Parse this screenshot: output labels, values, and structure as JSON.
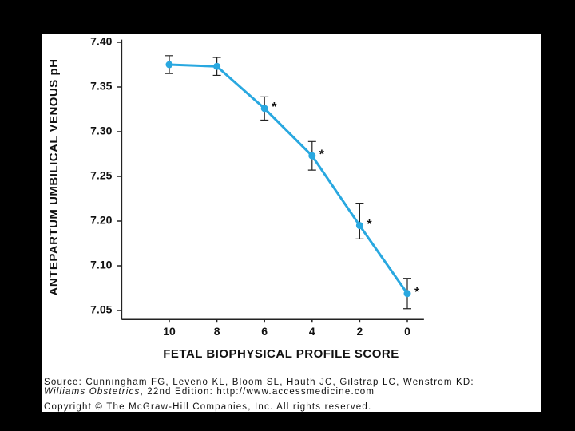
{
  "chart_data": {
    "type": "line",
    "x_label": "FETAL BIOPHYSICAL PROFILE SCORE",
    "y_label": "ANTEPARTUM UMBILICAL VENOUS pH",
    "x": [
      10,
      8,
      6,
      4,
      2,
      0
    ],
    "series": [
      {
        "color": "#29a8e0",
        "values": [
          7.375,
          7.373,
          7.326,
          7.273,
          7.19,
          7.069
        ],
        "errors": [
          0.01,
          0.01,
          0.013,
          0.016,
          0.03,
          0.017
        ]
      }
    ],
    "point_labels": [
      null,
      null,
      "*",
      "*",
      "*",
      "*"
    ],
    "xlim": [
      12,
      -0.7
    ],
    "xticks": [
      10,
      8,
      6,
      4,
      2,
      0
    ],
    "ylim": [
      7.04,
      7.403
    ],
    "yticks": [
      {
        "value": 7.4,
        "label": "7.40"
      },
      7.35,
      {
        "value": 7.3,
        "label": "7.30"
      },
      7.25,
      {
        "value": 7.2,
        "label": "7.20"
      },
      {
        "value": 7.1,
        "label": "7.10"
      },
      7.05
    ]
  },
  "source": {
    "citation": "Source: Cunningham FG, Leveno KL, Bloom SL, Hauth JC, Gilstrap LC, Wenstrom KD:",
    "book": "Williams Obstetrics",
    "edition": ", 22nd Edition: http://www.accessmedicine.com",
    "copyright": "Copyright © The McGraw-Hill Companies, Inc. All rights reserved."
  }
}
